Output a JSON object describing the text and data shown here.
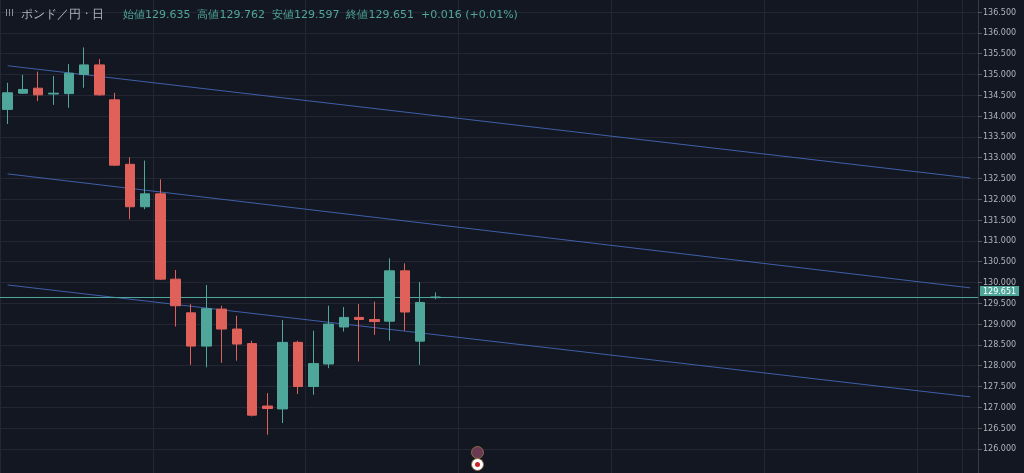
{
  "chart_data": {
    "type": "candlestick",
    "title": "ポンド／円 · 日",
    "subtitle": "始値129.635  高値129.762  安値129.597  終値129.651  +0.016 (+0.01%)",
    "categories": [
      null,
      null,
      null,
      null,
      null,
      null,
      null,
      null,
      null,
      null,
      null,
      null,
      null,
      null,
      null,
      null,
      null,
      null,
      null,
      null,
      null,
      null,
      null,
      null,
      null,
      null,
      null,
      null,
      null,
      null,
      null,
      null,
      null,
      null,
      null,
      null,
      null,
      null,
      null,
      null,
      null,
      null,
      null,
      null,
      null,
      null,
      null,
      null,
      null,
      null,
      null,
      null,
      null,
      null,
      null,
      null,
      null,
      null,
      null,
      null,
      null,
      null,
      null,
      null
    ],
    "ohlc": [
      [
        134.16,
        134.8,
        133.81,
        134.56
      ],
      [
        134.55,
        134.99,
        134.53,
        134.64
      ],
      [
        134.67,
        135.07,
        134.36,
        134.51
      ],
      [
        134.53,
        134.96,
        134.27,
        134.55
      ],
      [
        134.54,
        135.25,
        134.2,
        135.03
      ],
      [
        135.0,
        135.65,
        134.68,
        135.23
      ],
      [
        135.23,
        135.37,
        134.49,
        134.51
      ],
      [
        134.39,
        134.56,
        132.8,
        132.82
      ],
      [
        132.84,
        133.01,
        131.52,
        131.82
      ],
      [
        131.82,
        132.93,
        131.76,
        132.13
      ],
      [
        132.13,
        132.48,
        130.06,
        130.08
      ],
      [
        130.08,
        130.3,
        128.94,
        129.44
      ],
      [
        129.27,
        129.48,
        128.02,
        128.47
      ],
      [
        128.47,
        129.94,
        127.96,
        129.37
      ],
      [
        129.36,
        129.44,
        128.07,
        128.88
      ],
      [
        128.88,
        129.2,
        128.12,
        128.52
      ],
      [
        128.53,
        128.6,
        126.78,
        126.81
      ],
      [
        127.03,
        127.34,
        126.34,
        126.97
      ],
      [
        126.96,
        129.1,
        126.62,
        128.56
      ],
      [
        128.56,
        128.6,
        127.32,
        127.5
      ],
      [
        127.5,
        128.84,
        127.3,
        128.05
      ],
      [
        128.04,
        129.44,
        127.94,
        129.0
      ],
      [
        128.93,
        129.41,
        128.82,
        129.16
      ],
      [
        129.16,
        129.48,
        128.1,
        129.11
      ],
      [
        129.11,
        129.54,
        128.74,
        129.06
      ],
      [
        129.07,
        130.58,
        128.6,
        130.28
      ],
      [
        130.28,
        130.46,
        128.84,
        129.29
      ],
      [
        128.59,
        130.01,
        128.02,
        129.52
      ],
      [
        129.635,
        129.762,
        129.597,
        129.651
      ],
      null,
      null,
      null,
      null,
      null,
      null,
      null,
      null,
      null,
      null,
      null,
      null,
      null,
      null,
      null,
      null,
      null,
      null,
      null,
      null,
      null,
      null,
      null,
      null,
      null,
      null,
      null,
      null,
      null,
      null,
      null,
      null,
      null,
      null,
      null
    ],
    "colors": [
      "#4fa69a",
      "#4fa69a",
      "#e0605a",
      "#4fa69a",
      "#4fa69a",
      "#4fa69a",
      "#e0605a",
      "#e0605a",
      "#e0605a",
      "#4fa69a",
      "#e0605a",
      "#e0605a",
      "#e0605a",
      "#4fa69a",
      "#e0605a",
      "#e0605a",
      "#e0605a",
      "#e0605a",
      "#4fa69a",
      "#e0605a",
      "#4fa69a",
      "#4fa69a",
      "#4fa69a",
      "#e0605a",
      "#e0605a",
      "#4fa69a",
      "#e0605a",
      "#4fa69a",
      "#4fa69a",
      null,
      null,
      null,
      null,
      null,
      null,
      null,
      null,
      null,
      null,
      null,
      null,
      null,
      null,
      null,
      null,
      null,
      null,
      null,
      null,
      null,
      null,
      null,
      null,
      null,
      null,
      null,
      null,
      null,
      null,
      null,
      null,
      null,
      null,
      null
    ],
    "series": [
      {
        "type": "line",
        "color": "#3f5fa8",
        "values": [
          135.21,
          null,
          null,
          null,
          null,
          null,
          null,
          null,
          null,
          null,
          null,
          null,
          null,
          null,
          null,
          null,
          null,
          null,
          null,
          null,
          null,
          null,
          null,
          null,
          null,
          null,
          null,
          null,
          null,
          null,
          null,
          null,
          null,
          null,
          null,
          null,
          null,
          null,
          null,
          null,
          null,
          null,
          null,
          null,
          null,
          null,
          null,
          null,
          null,
          null,
          null,
          null,
          null,
          null,
          null,
          null,
          null,
          null,
          null,
          null,
          null,
          null,
          null,
          132.51
        ]
      },
      {
        "type": "line",
        "color": "#3f5fa8",
        "values": [
          132.61,
          null,
          null,
          null,
          null,
          null,
          null,
          null,
          null,
          null,
          null,
          null,
          null,
          null,
          null,
          null,
          null,
          null,
          null,
          null,
          null,
          null,
          null,
          null,
          null,
          null,
          null,
          null,
          null,
          null,
          null,
          null,
          null,
          null,
          null,
          null,
          null,
          null,
          null,
          null,
          null,
          null,
          null,
          null,
          null,
          null,
          null,
          null,
          null,
          null,
          null,
          null,
          null,
          null,
          null,
          null,
          null,
          null,
          null,
          null,
          null,
          null,
          null,
          129.87
        ]
      },
      {
        "type": "line",
        "color": "#3f5fa8",
        "values": [
          129.94,
          null,
          null,
          null,
          null,
          null,
          null,
          null,
          null,
          null,
          null,
          null,
          null,
          null,
          null,
          null,
          null,
          null,
          null,
          null,
          null,
          null,
          null,
          null,
          null,
          null,
          null,
          null,
          null,
          null,
          null,
          null,
          null,
          null,
          null,
          null,
          null,
          null,
          null,
          null,
          null,
          null,
          null,
          null,
          null,
          null,
          null,
          null,
          null,
          null,
          null,
          null,
          null,
          null,
          null,
          null,
          null,
          null,
          null,
          null,
          null,
          null,
          null,
          127.25
        ]
      }
    ],
    "ylim": [
      125.42,
      136.79
    ],
    "yticks": [
      {
        "value": 126,
        "label": "126.000"
      },
      {
        "value": 126.5,
        "label": "126.500"
      },
      {
        "value": 127,
        "label": "127.000"
      },
      {
        "value": 127.5,
        "label": "127.500"
      },
      {
        "value": 128,
        "label": "128.000"
      },
      {
        "value": 128.5,
        "label": "128.500"
      },
      {
        "value": 129,
        "label": "129.000"
      },
      {
        "value": 129.5,
        "label": "129.500"
      },
      {
        "value": 130,
        "label": "130.000"
      },
      {
        "value": 130.5,
        "label": "130.500"
      },
      {
        "value": 131,
        "label": "131.000"
      },
      {
        "value": 131.5,
        "label": "131.500"
      },
      {
        "value": 132,
        "label": "132.000"
      },
      {
        "value": 132.5,
        "label": "132.500"
      },
      {
        "value": 133,
        "label": "133.000"
      },
      {
        "value": 133.5,
        "label": "133.500"
      },
      {
        "value": 134,
        "label": "134.000"
      },
      {
        "value": 134.5,
        "label": "134.500"
      },
      {
        "value": 135,
        "label": "135.000"
      },
      {
        "value": 135.5,
        "label": "135.500"
      },
      {
        "value": 136,
        "label": "136.000"
      },
      {
        "value": 136.5,
        "label": "136.500"
      }
    ],
    "ref_lines": [
      {
        "axis": "y",
        "value": 129.651,
        "label": "129.651",
        "color": "#4fa69a"
      }
    ],
    "grid": true,
    "tick_labels": "y"
  }
}
